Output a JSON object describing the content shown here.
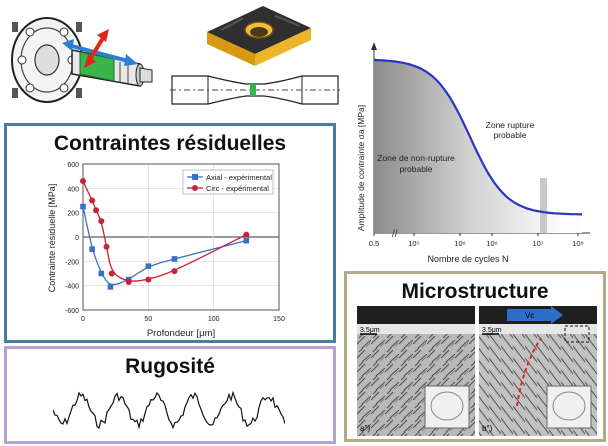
{
  "panels": {
    "residual": {
      "title": "Contraintes résiduelles",
      "border_color": "#4a7aa6"
    },
    "rugosite": {
      "title": "Rugosité",
      "border_color": "#b7a3cf"
    },
    "micro": {
      "title": "Microstructure",
      "border_color": "#b4ab86",
      "scale_left": "3.5μm",
      "scale_right": "3.5μm",
      "vc_label": "Vc",
      "label_a": "a°)",
      "label_b": "b°)"
    }
  },
  "colors": {
    "axial": "#3a6fc9",
    "circ": "#c8213a",
    "fatigue_curve": "#2a34c4",
    "part_green": "#39b54a",
    "arrow_red": "#e0261a",
    "arrow_blue": "#2d7ed6",
    "insert_gold": "#e0a81c"
  },
  "icons": {
    "part": "crankshaft-part-illustration",
    "insert": "cutting-insert-illustration",
    "specimen": "fatigue-specimen-illustration"
  },
  "chart_data": [
    {
      "type": "line",
      "title": "",
      "xlabel": "Profondeur [μm]",
      "ylabel": "Contrainte résiduelle [MPa]",
      "xlim": [
        0,
        150
      ],
      "ylim": [
        -600,
        600
      ],
      "xticks": [
        0,
        50,
        100,
        150
      ],
      "yticks": [
        -600,
        -400,
        -200,
        0,
        200,
        400,
        600
      ],
      "ytick_labels": [
        "-600",
        "-400",
        "-200",
        "0",
        "200",
        "400",
        "600"
      ],
      "legend_position": "top-right",
      "grid": true,
      "series": [
        {
          "name": "Axial - expérimental",
          "marker": "square",
          "x": [
            0,
            7,
            14,
            21,
            35,
            50,
            70,
            125
          ],
          "y": [
            250,
            -100,
            -300,
            -410,
            -350,
            -240,
            -180,
            -30
          ]
        },
        {
          "name": "Circ - expérimental",
          "marker": "circle",
          "x": [
            0,
            7,
            10,
            14,
            18,
            22,
            35,
            50,
            70,
            125
          ],
          "y": [
            460,
            300,
            220,
            130,
            -80,
            -300,
            -370,
            -350,
            -280,
            20
          ]
        }
      ]
    },
    {
      "type": "line",
      "title": "",
      "xlabel": "Nombre de cycles N",
      "ylabel": "Amplitude de contrainte σa [MPa]",
      "xscale": "log",
      "xticks": [
        "0.5",
        "10⁵",
        "10⁶",
        "10⁶",
        "10⁷",
        "10⁸"
      ],
      "annotations": [
        "Zone rupture probable",
        "Zone de non-rupture probable"
      ],
      "grid": false,
      "series": [
        {
          "x": [
            0.5,
            100000,
            300000,
            1000000,
            3000000,
            10000000,
            100000000,
            1000000000
          ],
          "y": [
            0.95,
            0.92,
            0.82,
            0.62,
            0.4,
            0.24,
            0.1,
            0.1
          ]
        }
      ]
    }
  ]
}
